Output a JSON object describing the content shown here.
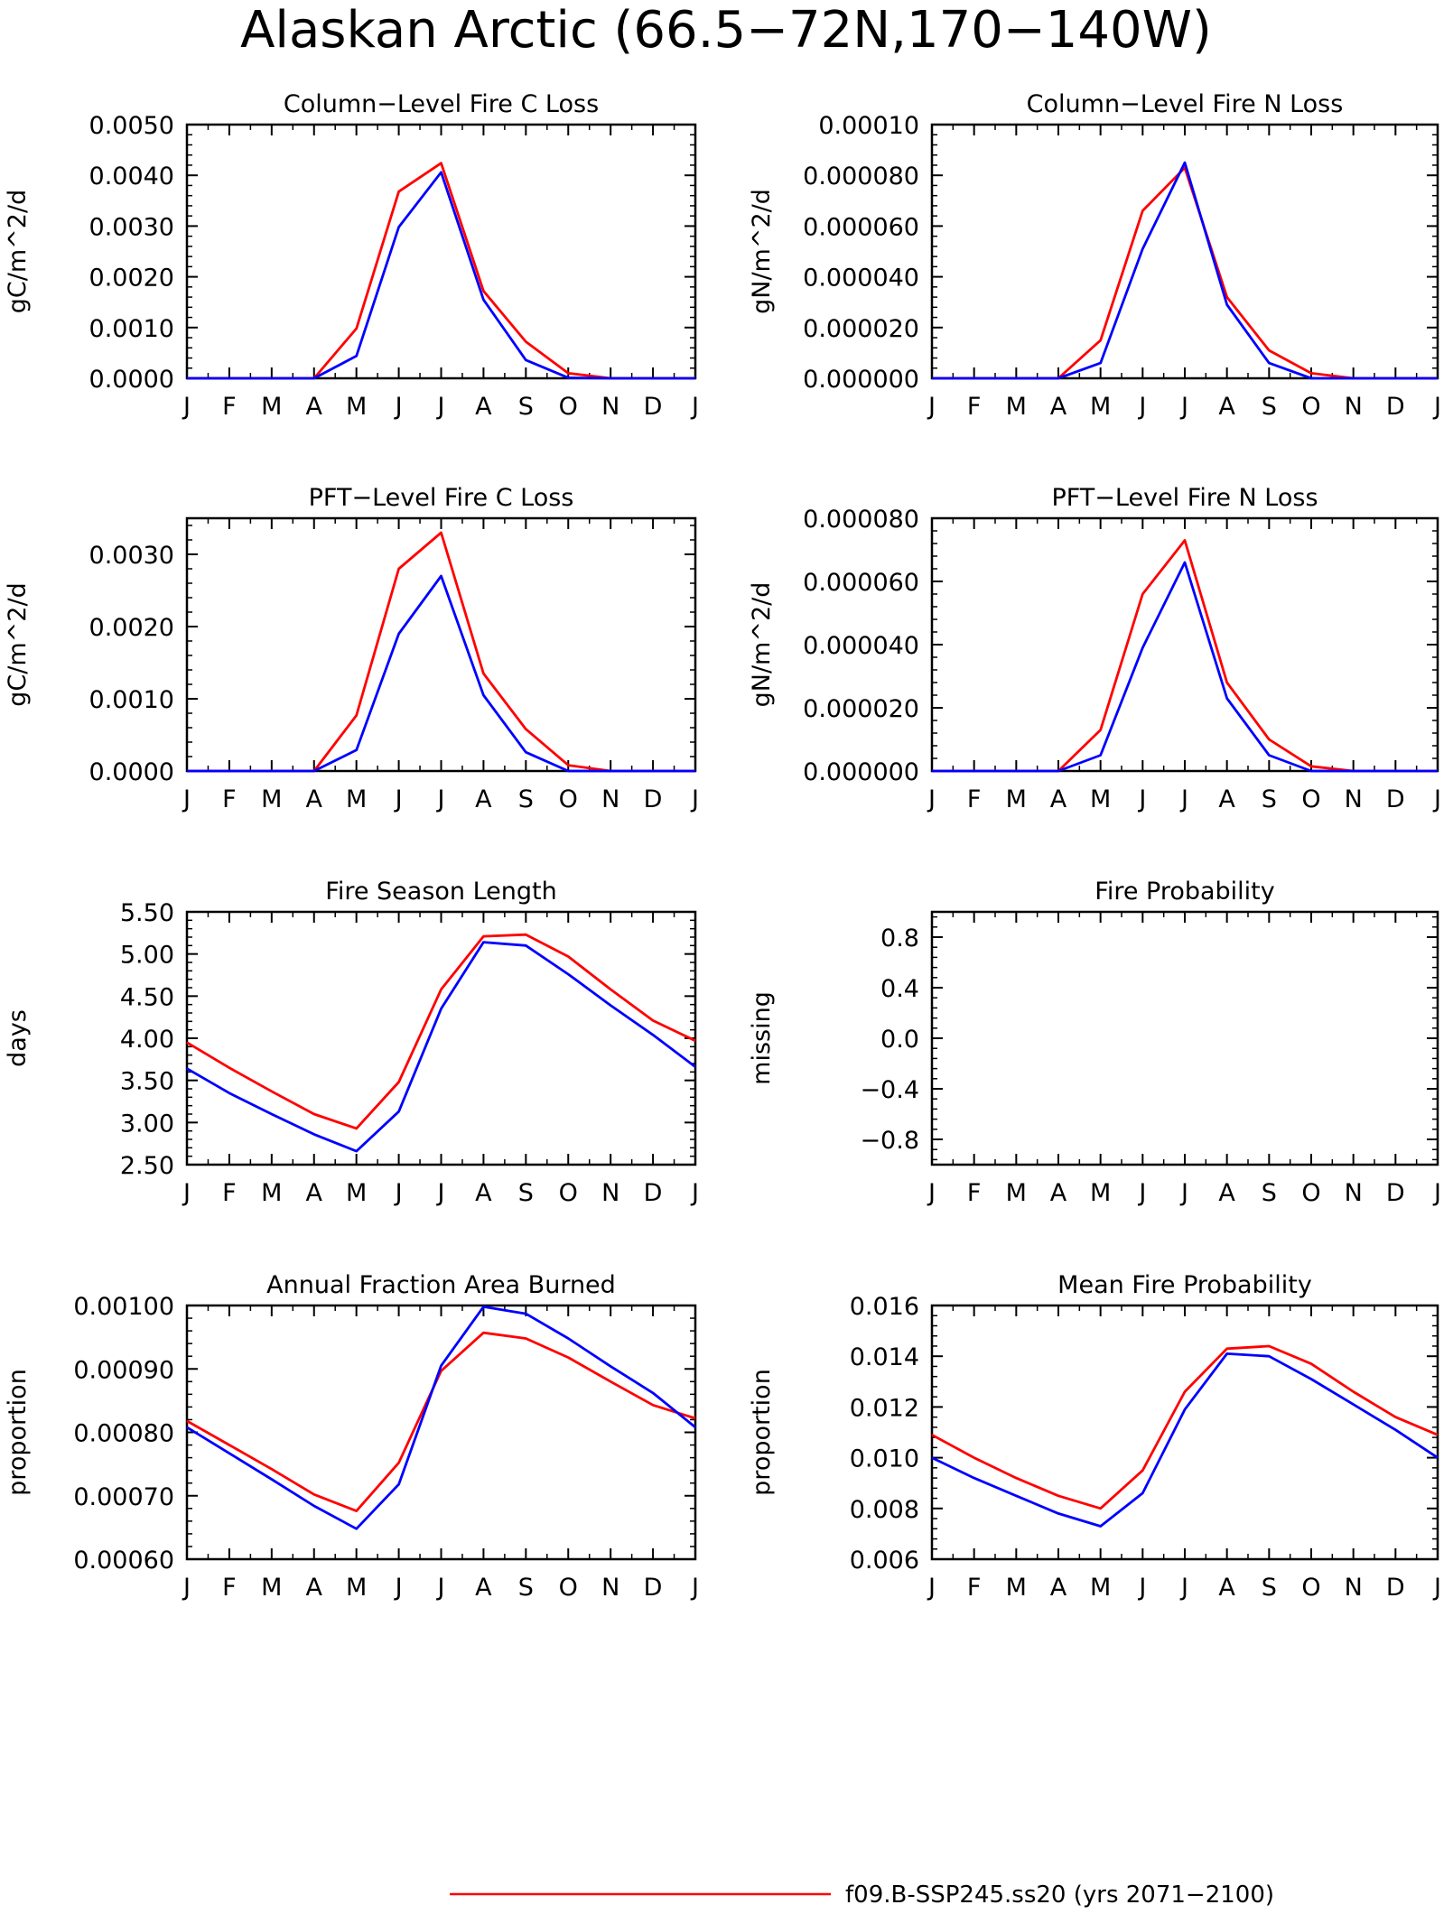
{
  "title": "Alaskan Arctic (66.5−72N,170−140W)",
  "colors": {
    "series_a": "#ff0000",
    "series_b": "#0000ff",
    "axis": "#000000"
  },
  "legend": {
    "entries": [
      {
        "label": "f09.B-SSP245.ss20 (yrs 2071−2100)",
        "color": "#ff0000"
      }
    ]
  },
  "chart_data": [
    {
      "type": "line",
      "title": "Column−Level Fire C Loss",
      "ylabel": "gC/m^2/d",
      "categories": [
        "J",
        "F",
        "M",
        "A",
        "M",
        "J",
        "J",
        "A",
        "S",
        "O",
        "N",
        "D",
        "J"
      ],
      "ylim": [
        0,
        0.005
      ],
      "yticks": [
        0,
        0.001,
        0.002,
        0.003,
        0.004,
        0.005
      ],
      "ytick_labels": [
        "0.0000",
        "0.0010",
        "0.0020",
        "0.0030",
        "0.0040",
        "0.0050"
      ],
      "series": [
        {
          "color": "#ff0000",
          "values": [
            0,
            0,
            0,
            0,
            0.00098,
            0.00368,
            0.00424,
            0.00172,
            0.00072,
            0.0001,
            0,
            0,
            0
          ]
        },
        {
          "color": "#0000ff",
          "values": [
            0,
            0,
            0,
            0,
            0.00044,
            0.00298,
            0.00406,
            0.00155,
            0.00036,
            1e-05,
            0,
            0,
            0
          ]
        }
      ]
    },
    {
      "type": "line",
      "title": "Column−Level Fire N Loss",
      "ylabel": "gN/m^2/d",
      "categories": [
        "J",
        "F",
        "M",
        "A",
        "M",
        "J",
        "J",
        "A",
        "S",
        "O",
        "N",
        "D",
        "J"
      ],
      "ylim": [
        0,
        0.0001
      ],
      "yticks": [
        0,
        2e-05,
        4e-05,
        6e-05,
        8e-05,
        0.0001
      ],
      "ytick_labels": [
        "0.000000",
        "0.000020",
        "0.000040",
        "0.000060",
        "0.000080",
        "0.00010"
      ],
      "series": [
        {
          "color": "#ff0000",
          "values": [
            0,
            0,
            0,
            0,
            1.5e-05,
            6.6e-05,
            8.3e-05,
            3.2e-05,
            1.1e-05,
            2e-06,
            0,
            0,
            0
          ]
        },
        {
          "color": "#0000ff",
          "values": [
            0,
            0,
            0,
            0,
            6e-06,
            5.1e-05,
            8.5e-05,
            2.9e-05,
            6e-06,
            0,
            0,
            0,
            0
          ]
        }
      ]
    },
    {
      "type": "line",
      "title": "PFT−Level Fire C Loss",
      "ylabel": "gC/m^2/d",
      "categories": [
        "J",
        "F",
        "M",
        "A",
        "M",
        "J",
        "J",
        "A",
        "S",
        "O",
        "N",
        "D",
        "J"
      ],
      "ylim": [
        0,
        0.0035
      ],
      "yticks": [
        0,
        0.001,
        0.002,
        0.003
      ],
      "ytick_labels": [
        "0.0000",
        "0.0010",
        "0.0020",
        "0.0030"
      ],
      "series": [
        {
          "color": "#ff0000",
          "values": [
            0,
            0,
            0,
            0,
            0.00077,
            0.0028,
            0.0033,
            0.00135,
            0.00058,
            8e-05,
            0,
            0,
            0
          ]
        },
        {
          "color": "#0000ff",
          "values": [
            0,
            0,
            0,
            0,
            0.00029,
            0.0019,
            0.0027,
            0.00105,
            0.00026,
            0,
            0,
            0,
            0
          ]
        }
      ]
    },
    {
      "type": "line",
      "title": "PFT−Level Fire N Loss",
      "ylabel": "gN/m^2/d",
      "categories": [
        "J",
        "F",
        "M",
        "A",
        "M",
        "J",
        "J",
        "A",
        "S",
        "O",
        "N",
        "D",
        "J"
      ],
      "ylim": [
        0,
        8e-05
      ],
      "yticks": [
        0,
        2e-05,
        4e-05,
        6e-05,
        8e-05
      ],
      "ytick_labels": [
        "0.000000",
        "0.000020",
        "0.000040",
        "0.000060",
        "0.000080"
      ],
      "series": [
        {
          "color": "#ff0000",
          "values": [
            0,
            0,
            0,
            0,
            1.3e-05,
            5.6e-05,
            7.3e-05,
            2.8e-05,
            1e-05,
            1.5e-06,
            0,
            0,
            0
          ]
        },
        {
          "color": "#0000ff",
          "values": [
            0,
            0,
            0,
            0,
            5e-06,
            3.9e-05,
            6.6e-05,
            2.3e-05,
            5e-06,
            0,
            0,
            0,
            0
          ]
        }
      ]
    },
    {
      "type": "line",
      "title": "Fire Season Length",
      "ylabel": "days",
      "categories": [
        "J",
        "F",
        "M",
        "A",
        "M",
        "J",
        "J",
        "A",
        "S",
        "O",
        "N",
        "D",
        "J"
      ],
      "ylim": [
        2.5,
        5.5
      ],
      "yticks": [
        2.5,
        3.0,
        3.5,
        4.0,
        4.5,
        5.0,
        5.5
      ],
      "ytick_labels": [
        "2.50",
        "3.00",
        "3.50",
        "4.00",
        "4.50",
        "5.00",
        "5.50"
      ],
      "series": [
        {
          "color": "#ff0000",
          "values": [
            3.95,
            3.65,
            3.37,
            3.1,
            2.93,
            3.48,
            4.58,
            5.21,
            5.23,
            4.97,
            4.58,
            4.21,
            3.97
          ]
        },
        {
          "color": "#0000ff",
          "values": [
            3.64,
            3.35,
            3.1,
            2.86,
            2.66,
            3.13,
            4.35,
            5.14,
            5.1,
            4.76,
            4.39,
            4.04,
            3.66
          ]
        }
      ]
    },
    {
      "type": "line",
      "title": "Fire Probability",
      "ylabel": "missing",
      "categories": [
        "J",
        "F",
        "M",
        "A",
        "M",
        "J",
        "J",
        "A",
        "S",
        "O",
        "N",
        "D",
        "J"
      ],
      "ylim": [
        -1,
        1
      ],
      "yticks": [
        -0.8,
        -0.4,
        0.0,
        0.4,
        0.8
      ],
      "ytick_labels": [
        "−0.8",
        "−0.4",
        "0.0",
        "0.4",
        "0.8"
      ],
      "series": []
    },
    {
      "type": "line",
      "title": "Annual Fraction Area Burned",
      "ylabel": "proportion",
      "categories": [
        "J",
        "F",
        "M",
        "A",
        "M",
        "J",
        "J",
        "A",
        "S",
        "O",
        "N",
        "D",
        "J"
      ],
      "ylim": [
        0.0006,
        0.001
      ],
      "yticks": [
        0.0006,
        0.0007,
        0.0008,
        0.0009,
        0.001
      ],
      "ytick_labels": [
        "0.00060",
        "0.00070",
        "0.00080",
        "0.00090",
        "0.00100"
      ],
      "series": [
        {
          "color": "#ff0000",
          "values": [
            0.000818,
            0.00078,
            0.000742,
            0.000702,
            0.000676,
            0.000752,
            0.000897,
            0.000957,
            0.000948,
            0.000918,
            0.00088,
            0.000843,
            0.000822
          ]
        },
        {
          "color": "#0000ff",
          "values": [
            0.000808,
            0.000767,
            0.000726,
            0.000684,
            0.000648,
            0.000718,
            0.000905,
            0.000998,
            0.000987,
            0.000948,
            0.000904,
            0.000862,
            0.000808
          ]
        }
      ]
    },
    {
      "type": "line",
      "title": "Mean Fire Probability",
      "ylabel": "proportion",
      "categories": [
        "J",
        "F",
        "M",
        "A",
        "M",
        "J",
        "J",
        "A",
        "S",
        "O",
        "N",
        "D",
        "J"
      ],
      "ylim": [
        0.006,
        0.016
      ],
      "yticks": [
        0.006,
        0.008,
        0.01,
        0.012,
        0.014,
        0.016
      ],
      "ytick_labels": [
        "0.006",
        "0.008",
        "0.010",
        "0.012",
        "0.014",
        "0.016"
      ],
      "series": [
        {
          "color": "#ff0000",
          "values": [
            0.0109,
            0.01,
            0.0092,
            0.0085,
            0.008,
            0.0095,
            0.0126,
            0.0143,
            0.0144,
            0.0137,
            0.0126,
            0.0116,
            0.0109
          ]
        },
        {
          "color": "#0000ff",
          "values": [
            0.01,
            0.0092,
            0.0085,
            0.0078,
            0.0073,
            0.0086,
            0.0119,
            0.0141,
            0.014,
            0.0131,
            0.0121,
            0.0111,
            0.01
          ]
        }
      ]
    }
  ]
}
